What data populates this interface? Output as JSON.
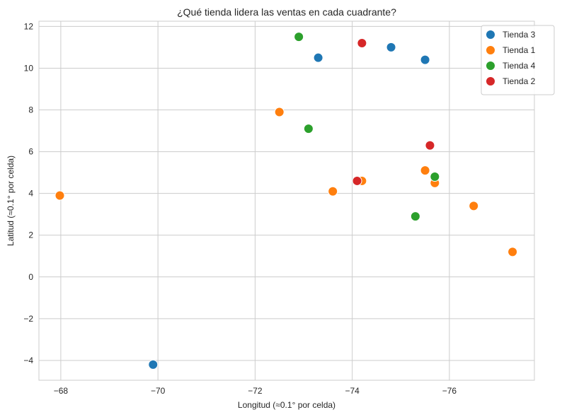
{
  "chart_data": {
    "type": "scatter",
    "title": "¿Qué tienda lidera las ventas en cada cuadrante?",
    "xlabel": "Longitud (≈0.1° por celda)",
    "ylabel": "Latitud  (≈0.1° por celda)",
    "x_reversed": true,
    "xlim": [
      -67.55,
      -77.75
    ],
    "ylim": [
      -4.95,
      12.25
    ],
    "x_ticks": [
      -68,
      -70,
      -72,
      -74,
      -76
    ],
    "y_ticks": [
      -4,
      -2,
      0,
      2,
      4,
      6,
      8,
      10,
      12
    ],
    "x_tick_labels": [
      "−68",
      "−70",
      "−72",
      "−74",
      "−76"
    ],
    "y_tick_labels": [
      "−4",
      "−2",
      "0",
      "2",
      "4",
      "6",
      "8",
      "10",
      "12"
    ],
    "grid": true,
    "legend_position": "top-right",
    "series": [
      {
        "name": "Tienda 3",
        "color": "#1f77b4",
        "points": [
          [
            -73.3,
            10.5
          ],
          [
            -74.8,
            11.0
          ],
          [
            -75.5,
            10.4
          ],
          [
            -69.9,
            -4.2
          ]
        ]
      },
      {
        "name": "Tienda 1",
        "color": "#ff7f0e",
        "points": [
          [
            -72.5,
            7.9
          ],
          [
            -67.98,
            3.9
          ],
          [
            -73.6,
            4.1
          ],
          [
            -74.2,
            4.6
          ],
          [
            -75.5,
            5.1
          ],
          [
            -75.7,
            4.5
          ],
          [
            -76.5,
            3.4
          ],
          [
            -77.3,
            1.2
          ]
        ]
      },
      {
        "name": "Tienda 4",
        "color": "#2ca02c",
        "points": [
          [
            -72.9,
            11.5
          ],
          [
            -73.1,
            7.1
          ],
          [
            -75.3,
            2.9
          ],
          [
            -75.7,
            4.8
          ]
        ]
      },
      {
        "name": "Tienda 2",
        "color": "#d62728",
        "points": [
          [
            -74.2,
            11.2
          ],
          [
            -75.6,
            6.3
          ],
          [
            -74.1,
            4.6
          ]
        ]
      }
    ]
  }
}
